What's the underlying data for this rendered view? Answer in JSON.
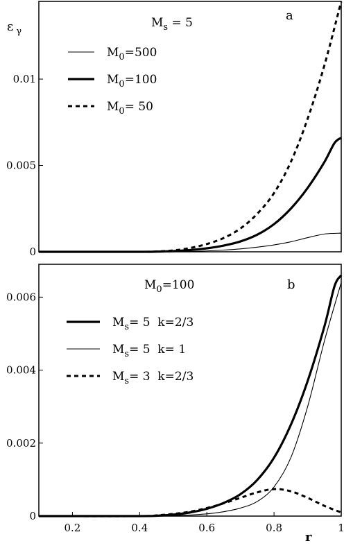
{
  "chart_data": [
    {
      "type": "line",
      "panel_label": "a",
      "ylabel": "ε",
      "ylabel_sub": "γ",
      "annotation": {
        "main": "M",
        "sub": "s",
        "rest": " = 5"
      },
      "xlim": [
        0.1,
        1.0
      ],
      "ylim": [
        0,
        0.0145
      ],
      "yticks": [
        {
          "value": 0,
          "label": "0"
        },
        {
          "value": 0.005,
          "label": "0.005"
        },
        {
          "value": 0.01,
          "label": "0.01"
        }
      ],
      "xticks": [],
      "grid": false,
      "legend_position": "top-left",
      "series": [
        {
          "legend": {
            "main": "M",
            "sub": "0",
            "rest": "=500"
          },
          "style": "thin",
          "x": [
            0.1,
            0.4,
            0.5,
            0.55,
            0.6,
            0.65,
            0.7,
            0.75,
            0.8,
            0.85,
            0.9,
            0.95,
            1.0
          ],
          "y": [
            0,
            0,
            5e-06,
            2e-05,
            5e-05,
            0.0001,
            0.00017,
            0.00027,
            0.0004,
            0.00058,
            0.00082,
            0.00103,
            0.00108
          ]
        },
        {
          "legend": {
            "main": "M",
            "sub": "0",
            "rest": "=100"
          },
          "style": "thick",
          "x": [
            0.1,
            0.4,
            0.45,
            0.5,
            0.55,
            0.6,
            0.65,
            0.7,
            0.75,
            0.8,
            0.85,
            0.9,
            0.95,
            0.98,
            1.0
          ],
          "y": [
            0,
            0,
            1e-05,
            4e-05,
            0.0001,
            0.0002,
            0.00036,
            0.0006,
            0.00099,
            0.0016,
            0.0025,
            0.0037,
            0.0052,
            0.0063,
            0.0066
          ]
        },
        {
          "legend": {
            "main": "M",
            "sub": "0",
            "rest": "= 50"
          },
          "style": "dashed",
          "x": [
            0.1,
            0.4,
            0.45,
            0.5,
            0.55,
            0.6,
            0.65,
            0.7,
            0.75,
            0.8,
            0.85,
            0.9,
            0.95,
            1.0
          ],
          "y": [
            0,
            0,
            2e-05,
            8e-05,
            0.00022,
            0.00045,
            0.0008,
            0.00135,
            0.0022,
            0.0034,
            0.0052,
            0.0077,
            0.0108,
            0.0145
          ]
        }
      ]
    },
    {
      "type": "line",
      "panel_label": "b",
      "xlabel": "r",
      "annotation": {
        "main": "M",
        "sub": "0",
        "rest": "=100"
      },
      "xlim": [
        0.1,
        1.0
      ],
      "ylim": [
        0,
        0.0069
      ],
      "yticks": [
        {
          "value": 0,
          "label": "0"
        },
        {
          "value": 0.002,
          "label": "0.002"
        },
        {
          "value": 0.004,
          "label": "0.004"
        },
        {
          "value": 0.006,
          "label": "0.006"
        }
      ],
      "xticks": [
        {
          "value": 0.2,
          "label": "0.2"
        },
        {
          "value": 0.4,
          "label": "0.4"
        },
        {
          "value": 0.6,
          "label": "0.6"
        },
        {
          "value": 0.8,
          "label": "0.8"
        },
        {
          "value": 1.0,
          "label": "1"
        }
      ],
      "grid": false,
      "legend_position": "top-left",
      "series": [
        {
          "legend": {
            "main": "M",
            "sub": "s",
            "rest": "= 5  k=2/3"
          },
          "style": "thick",
          "x": [
            0.1,
            0.4,
            0.45,
            0.5,
            0.55,
            0.6,
            0.65,
            0.7,
            0.75,
            0.8,
            0.85,
            0.9,
            0.95,
            0.98,
            1.0
          ],
          "y": [
            0,
            0,
            1e-05,
            4e-05,
            0.0001,
            0.0002,
            0.00036,
            0.0006,
            0.00099,
            0.0016,
            0.0025,
            0.0037,
            0.0052,
            0.0063,
            0.0066
          ]
        },
        {
          "legend": {
            "main": "M",
            "sub": "s",
            "rest": "= 5  k= 1"
          },
          "style": "thin",
          "x": [
            0.1,
            0.4,
            0.5,
            0.6,
            0.65,
            0.7,
            0.75,
            0.8,
            0.85,
            0.9,
            0.95,
            1.0
          ],
          "y": [
            0,
            0,
            1e-05,
            6e-05,
            0.00012,
            0.00022,
            0.0004,
            0.0008,
            0.0016,
            0.003,
            0.0048,
            0.0064
          ]
        },
        {
          "legend": {
            "main": "M",
            "sub": "s",
            "rest": "= 3  k=2/3"
          },
          "style": "dashed",
          "x": [
            0.1,
            0.4,
            0.45,
            0.5,
            0.55,
            0.6,
            0.65,
            0.7,
            0.75,
            0.8,
            0.85,
            0.9,
            0.95,
            1.0
          ],
          "y": [
            0,
            0,
            2e-05,
            6e-05,
            0.00012,
            0.00022,
            0.00035,
            0.0005,
            0.00065,
            0.00074,
            0.00068,
            0.0005,
            0.00028,
            0.0001
          ]
        }
      ]
    }
  ]
}
